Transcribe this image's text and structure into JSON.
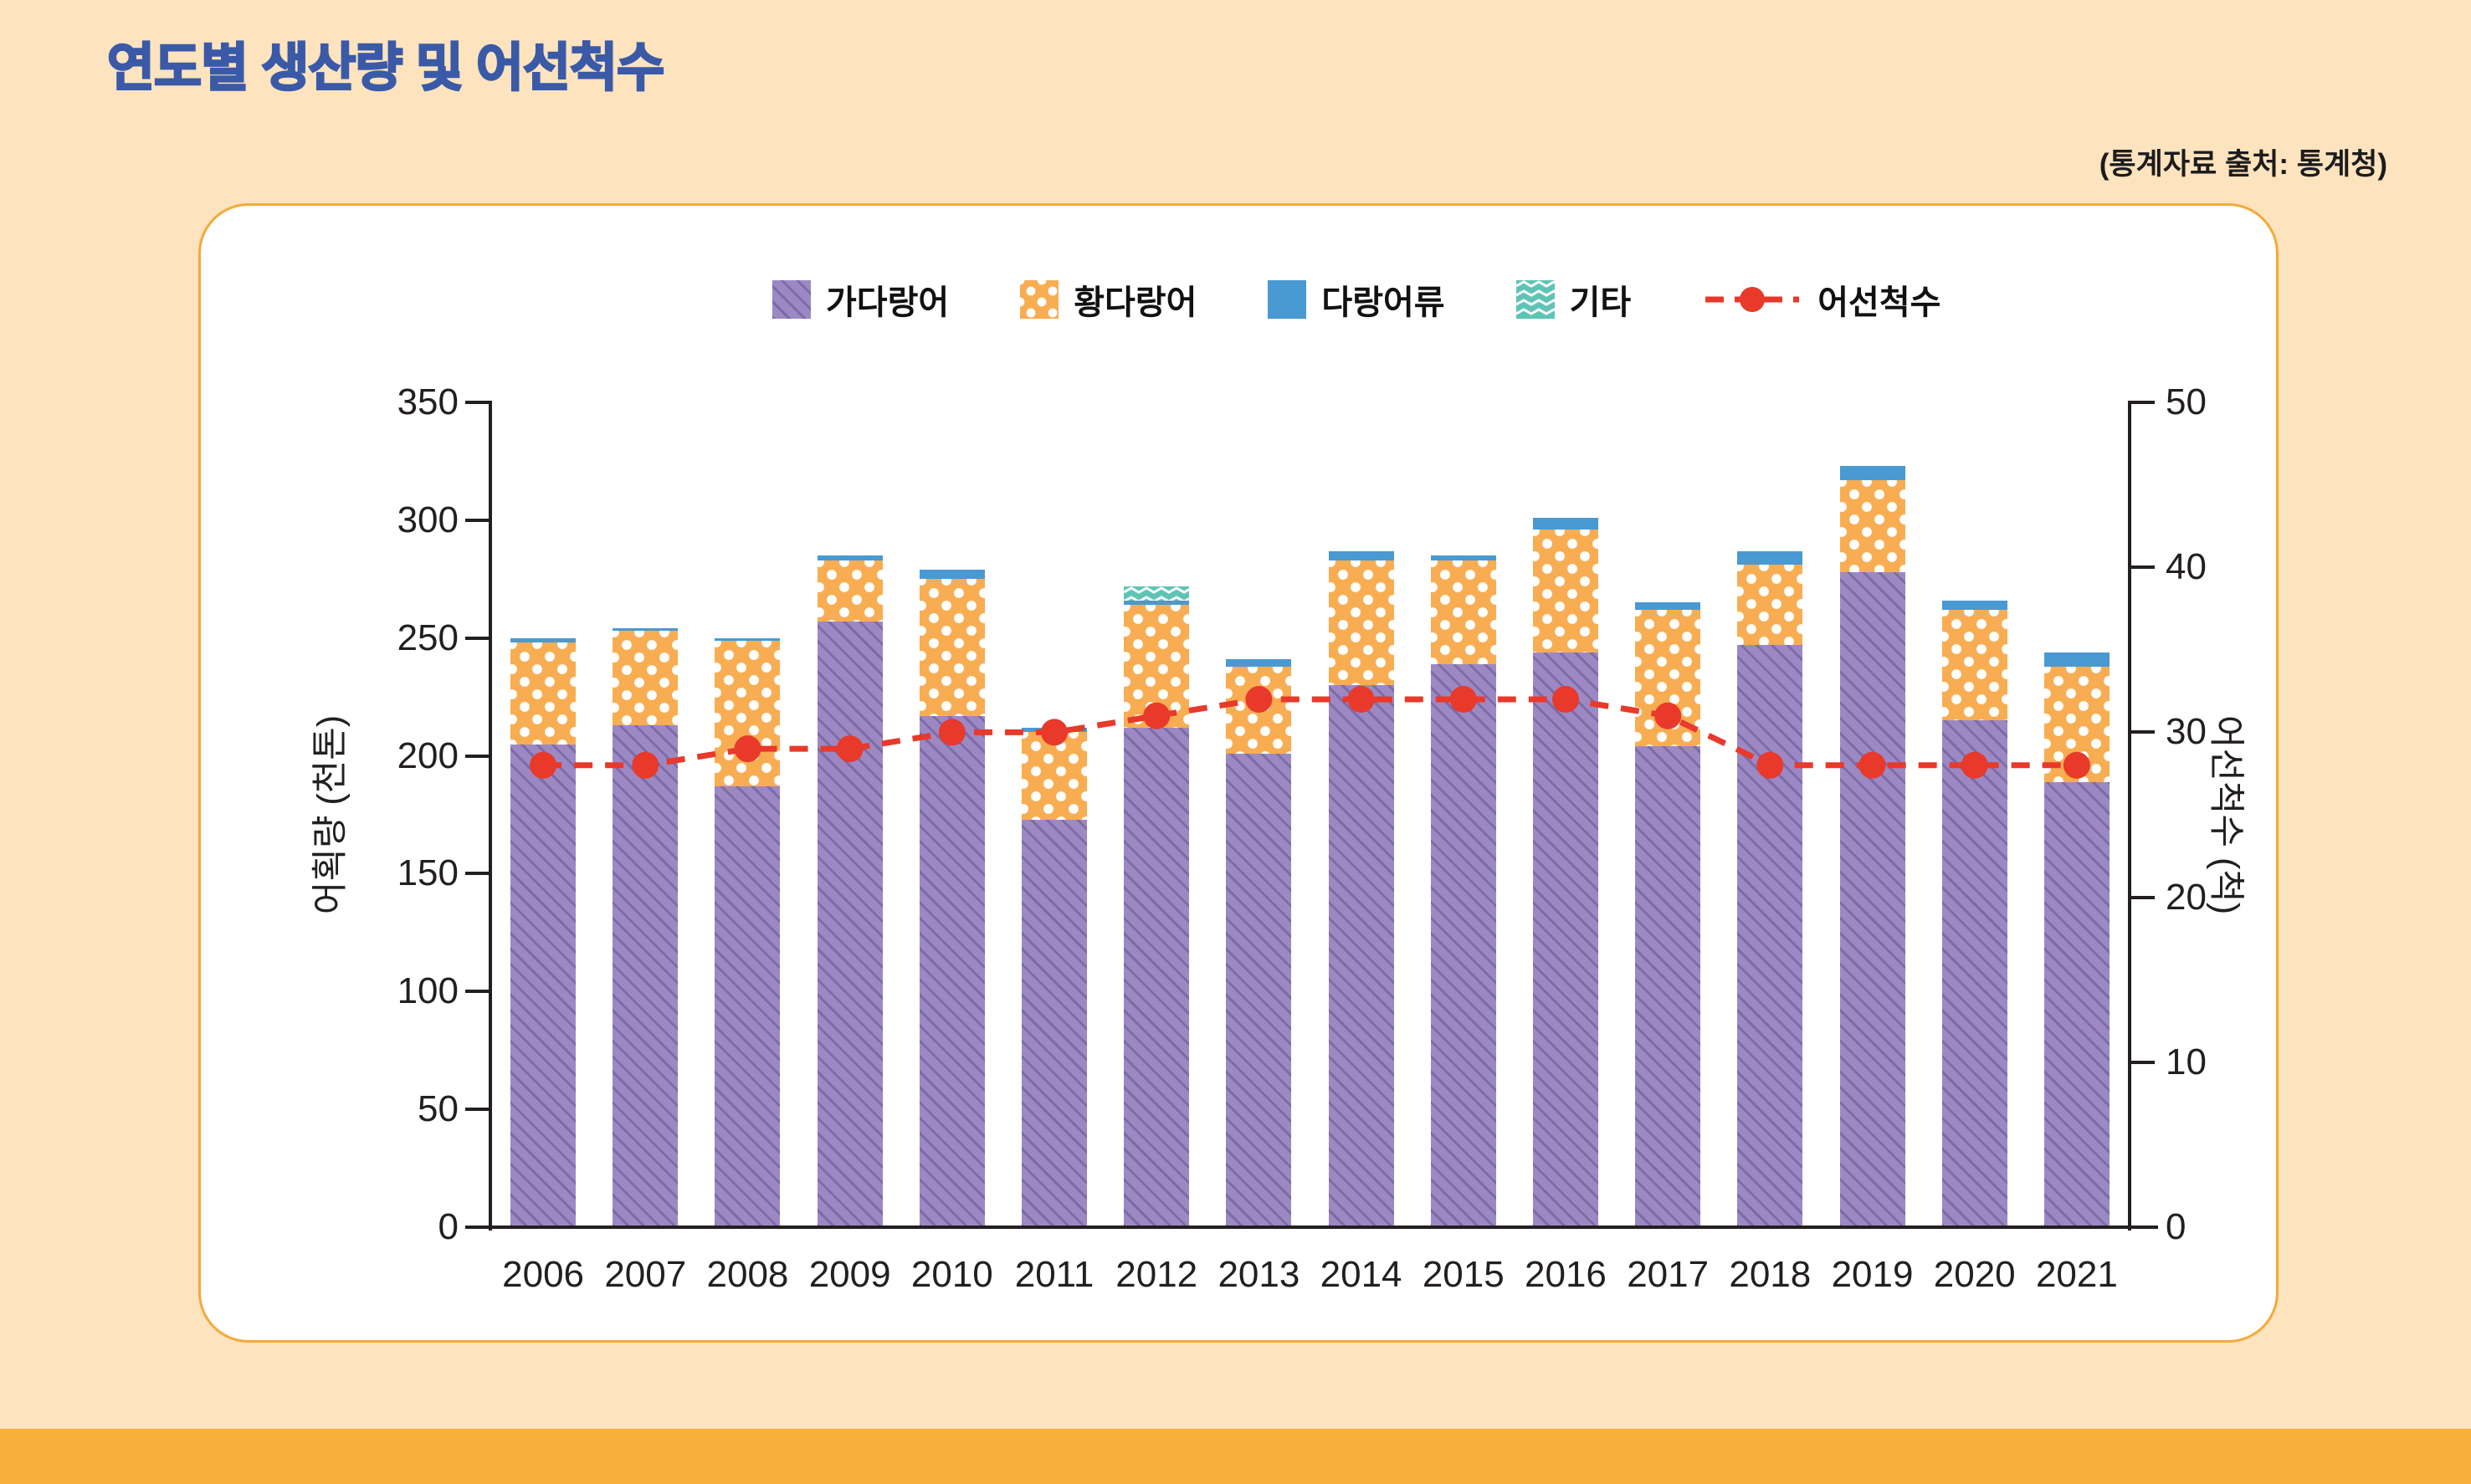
{
  "page": {
    "title": "연도별 생산량 및 어선척수",
    "source_note": "(통계자료 출처: 통계청)"
  },
  "legend": {
    "items": [
      {
        "label": "가다랑어",
        "swatch": "purple-diagonal-hatch"
      },
      {
        "label": "황다랑어",
        "swatch": "orange-polka-dots"
      },
      {
        "label": "다랑어류",
        "swatch": "solid-blue"
      },
      {
        "label": "기타",
        "swatch": "teal-zigzag"
      },
      {
        "label": "어선척수",
        "swatch": "red-dashed-line-with-dot"
      }
    ]
  },
  "chart_data": {
    "type": "bar",
    "subtype": "stacked-bars-with-line-overlay",
    "title": "연도별 생산량 및 어선척수",
    "grid": false,
    "legend_position": "top",
    "categories": [
      "2006",
      "2007",
      "2008",
      "2009",
      "2010",
      "2011",
      "2012",
      "2013",
      "2014",
      "2015",
      "2016",
      "2017",
      "2018",
      "2019",
      "2020",
      "2021"
    ],
    "series": [
      {
        "name": "가다랑어",
        "key": "skipjack",
        "type": "bar",
        "stack_order": 1,
        "color": "#9C89C4",
        "pattern": "diagonal-hatch",
        "stripe_color": "#7D6BA6",
        "values": [
          205,
          213,
          187,
          257,
          217,
          173,
          212,
          201,
          230,
          239,
          244,
          204,
          247,
          278,
          215,
          189
        ]
      },
      {
        "name": "황다랑어",
        "key": "yellowfin",
        "type": "bar",
        "stack_order": 2,
        "color": "#F8AD52",
        "pattern": "polka-dot",
        "values": [
          43,
          40,
          62,
          26,
          58,
          37,
          52,
          37,
          53,
          44,
          52,
          58,
          34,
          39,
          47,
          49
        ]
      },
      {
        "name": "다랑어류",
        "key": "other-tunas",
        "type": "bar",
        "stack_order": 3,
        "color": "#4999D3",
        "pattern": "solid",
        "values": [
          2,
          1,
          1,
          2,
          4,
          2,
          2,
          3,
          4,
          2,
          5,
          3,
          6,
          6,
          4,
          6
        ]
      },
      {
        "name": "기타",
        "key": "etc",
        "type": "bar",
        "stack_order": 4,
        "color": "#5EC4B6",
        "pattern": "zigzag",
        "values": [
          0,
          0,
          0,
          0,
          0,
          0,
          6,
          0,
          0,
          0,
          0,
          0,
          0,
          0,
          0,
          0
        ]
      },
      {
        "name": "어선척수",
        "key": "vessels",
        "type": "line",
        "axis": "right",
        "color": "#E8392B",
        "style": "dashed-with-dot-markers",
        "values": [
          28,
          28,
          29,
          29,
          30,
          30,
          31,
          32,
          32,
          32,
          32,
          31,
          28,
          28,
          28,
          28
        ]
      }
    ],
    "left_axis": {
      "label": "어획량 (천톤)",
      "min": 0,
      "max": 350,
      "step": 50,
      "ticks": [
        0,
        50,
        100,
        150,
        200,
        250,
        300,
        350
      ]
    },
    "right_axis": {
      "label": "어선척수 (척)",
      "min": 0,
      "max": 50,
      "step": 10,
      "ticks": [
        0,
        10,
        20,
        30,
        40,
        50
      ]
    }
  },
  "colors": {
    "page_background": "#FDE3BE",
    "bottom_strip": "#F9AF3B",
    "panel_background": "#FFFFFF",
    "panel_border": "#F5A93B",
    "title_text": "#3A5AA8",
    "axis_line": "#231F20",
    "text": "#111111"
  }
}
